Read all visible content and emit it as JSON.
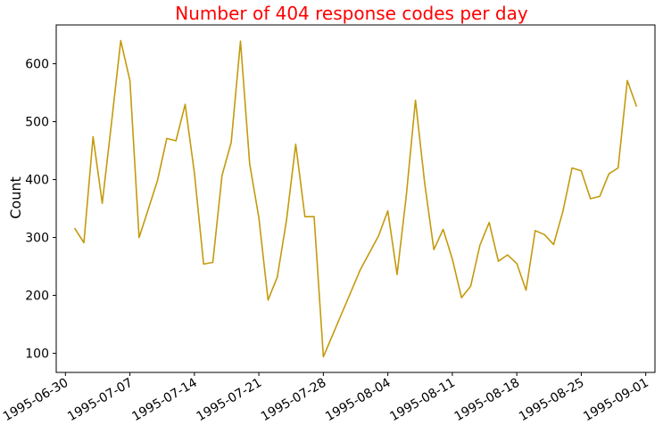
{
  "chart_data": {
    "type": "line",
    "title": "Number of 404 response codes per day",
    "xlabel": "",
    "ylabel": "Count",
    "x_ticks": [
      "1995-06-30",
      "1995-07-07",
      "1995-07-14",
      "1995-07-21",
      "1995-07-28",
      "1995-08-04",
      "1995-08-11",
      "1995-08-18",
      "1995-08-25",
      "1995-09-01"
    ],
    "y_ticks": [
      100,
      200,
      300,
      400,
      500,
      600
    ],
    "xlim": [
      "1995-06-29",
      "1995-09-02"
    ],
    "ylim": [
      67,
      667
    ],
    "grid": false,
    "colors": {
      "line": "#c49a0c",
      "title": "#ff0000"
    },
    "series": [
      {
        "x": [
          "1995-07-01",
          "1995-07-02",
          "1995-07-03",
          "1995-07-04",
          "1995-07-05",
          "1995-07-06",
          "1995-07-07",
          "1995-07-08",
          "1995-07-09",
          "1995-07-10",
          "1995-07-11",
          "1995-07-12",
          "1995-07-13",
          "1995-07-14",
          "1995-07-15",
          "1995-07-16",
          "1995-07-17",
          "1995-07-18",
          "1995-07-19",
          "1995-07-20",
          "1995-07-21",
          "1995-07-22",
          "1995-07-23",
          "1995-07-24",
          "1995-07-25",
          "1995-07-26",
          "1995-07-27",
          "1995-07-28",
          "1995-08-01",
          "1995-08-03",
          "1995-08-04",
          "1995-08-05",
          "1995-08-06",
          "1995-08-07",
          "1995-08-08",
          "1995-08-09",
          "1995-08-10",
          "1995-08-11",
          "1995-08-12",
          "1995-08-13",
          "1995-08-14",
          "1995-08-15",
          "1995-08-16",
          "1995-08-17",
          "1995-08-18",
          "1995-08-19",
          "1995-08-20",
          "1995-08-21",
          "1995-08-22",
          "1995-08-23",
          "1995-08-24",
          "1995-08-25",
          "1995-08-26",
          "1995-08-27",
          "1995-08-28",
          "1995-08-29",
          "1995-08-30",
          "1995-08-31"
        ],
        "values": [
          316,
          291,
          474,
          359,
          497,
          640,
          571,
          300,
          349,
          399,
          471,
          467,
          530,
          412,
          254,
          257,
          407,
          464,
          639,
          427,
          334,
          192,
          232,
          330,
          461,
          336,
          336,
          94,
          244,
          303,
          346,
          236,
          372,
          537,
          394,
          279,
          314,
          263,
          196,
          216,
          287,
          326,
          259,
          270,
          255,
          209,
          312,
          305,
          288,
          345,
          420,
          415,
          367,
          371,
          410,
          420,
          571,
          526
        ]
      }
    ]
  }
}
